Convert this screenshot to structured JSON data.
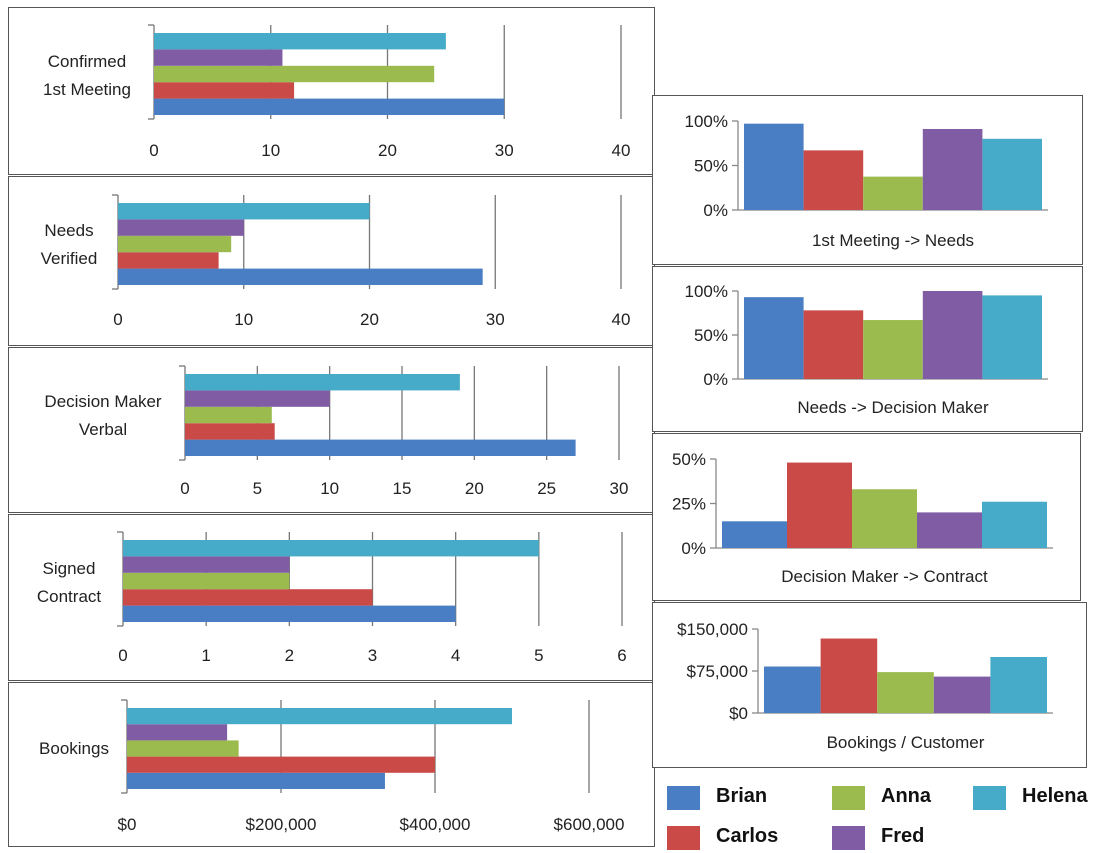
{
  "colors": {
    "Brian": "#4a7ec4",
    "Carlos": "#c94a46",
    "Anna": "#9bbb4f",
    "Fred": "#7f5ca3",
    "Helena": "#46abc8"
  },
  "legend": [
    "Brian",
    "Carlos",
    "Anna",
    "Fred",
    "Helena"
  ],
  "chart_data": [
    {
      "id": "confirmed",
      "type": "bar",
      "orientation": "horizontal",
      "category_label_lines": [
        "Confirmed",
        "1st Meeting"
      ],
      "series": [
        {
          "name": "Brian",
          "value": 30
        },
        {
          "name": "Carlos",
          "value": 12
        },
        {
          "name": "Anna",
          "value": 24
        },
        {
          "name": "Fred",
          "value": 11
        },
        {
          "name": "Helena",
          "value": 25
        }
      ],
      "xlim": [
        0,
        40
      ],
      "ticks": [
        0,
        10,
        20,
        30,
        40
      ],
      "tick_labels": [
        "0",
        "10",
        "20",
        "30",
        "40"
      ],
      "grid": true
    },
    {
      "id": "needs",
      "type": "bar",
      "orientation": "horizontal",
      "category_label_lines": [
        "Needs",
        "Verified"
      ],
      "series": [
        {
          "name": "Brian",
          "value": 29
        },
        {
          "name": "Carlos",
          "value": 8
        },
        {
          "name": "Anna",
          "value": 9
        },
        {
          "name": "Fred",
          "value": 10
        },
        {
          "name": "Helena",
          "value": 20
        }
      ],
      "xlim": [
        0,
        40
      ],
      "ticks": [
        0,
        10,
        20,
        30,
        40
      ],
      "tick_labels": [
        "0",
        "10",
        "20",
        "30",
        "40"
      ],
      "grid": true
    },
    {
      "id": "decision",
      "type": "bar",
      "orientation": "horizontal",
      "category_label_lines": [
        "Decision Maker",
        "Verbal"
      ],
      "series": [
        {
          "name": "Brian",
          "value": 27
        },
        {
          "name": "Carlos",
          "value": 6.2
        },
        {
          "name": "Anna",
          "value": 6
        },
        {
          "name": "Fred",
          "value": 10
        },
        {
          "name": "Helena",
          "value": 19
        }
      ],
      "xlim": [
        0,
        30
      ],
      "ticks": [
        0,
        5,
        10,
        15,
        20,
        25,
        30
      ],
      "tick_labels": [
        "0",
        "5",
        "10",
        "15",
        "20",
        "25",
        "30"
      ],
      "grid": true
    },
    {
      "id": "signed",
      "type": "bar",
      "orientation": "horizontal",
      "category_label_lines": [
        "Signed",
        "Contract"
      ],
      "series": [
        {
          "name": "Brian",
          "value": 4
        },
        {
          "name": "Carlos",
          "value": 3
        },
        {
          "name": "Anna",
          "value": 2
        },
        {
          "name": "Fred",
          "value": 2
        },
        {
          "name": "Helena",
          "value": 5
        }
      ],
      "xlim": [
        0,
        6
      ],
      "ticks": [
        0,
        1,
        2,
        3,
        4,
        5,
        6
      ],
      "tick_labels": [
        "0",
        "1",
        "2",
        "3",
        "4",
        "5",
        "6"
      ],
      "grid": true
    },
    {
      "id": "bookings",
      "type": "bar",
      "orientation": "horizontal",
      "category_label_lines": [
        "Bookings"
      ],
      "series": [
        {
          "name": "Brian",
          "value": 335000
        },
        {
          "name": "Carlos",
          "value": 400000
        },
        {
          "name": "Anna",
          "value": 145000
        },
        {
          "name": "Fred",
          "value": 130000
        },
        {
          "name": "Helena",
          "value": 500000
        }
      ],
      "xlim": [
        0,
        600000
      ],
      "ticks": [
        0,
        200000,
        400000,
        600000
      ],
      "tick_labels": [
        "$0",
        "$200,000",
        "$400,000",
        "$600,000"
      ],
      "grid": true
    },
    {
      "id": "meet_needs",
      "type": "bar",
      "orientation": "vertical",
      "xlabel": "1st Meeting -> Needs",
      "series": [
        {
          "name": "Brian",
          "value": 0.97
        },
        {
          "name": "Carlos",
          "value": 0.67
        },
        {
          "name": "Anna",
          "value": 0.375
        },
        {
          "name": "Fred",
          "value": 0.91
        },
        {
          "name": "Helena",
          "value": 0.8
        }
      ],
      "ylim": [
        0,
        1
      ],
      "ticks": [
        0,
        0.5,
        1
      ],
      "tick_labels": [
        "0%",
        "50%",
        "100%"
      ]
    },
    {
      "id": "needs_decision",
      "type": "bar",
      "orientation": "vertical",
      "xlabel": "Needs -> Decision Maker",
      "series": [
        {
          "name": "Brian",
          "value": 0.93
        },
        {
          "name": "Carlos",
          "value": 0.78
        },
        {
          "name": "Anna",
          "value": 0.67
        },
        {
          "name": "Fred",
          "value": 1.0
        },
        {
          "name": "Helena",
          "value": 0.95
        }
      ],
      "ylim": [
        0,
        1
      ],
      "ticks": [
        0,
        0.5,
        1
      ],
      "tick_labels": [
        "0%",
        "50%",
        "100%"
      ]
    },
    {
      "id": "decision_contract",
      "type": "bar",
      "orientation": "vertical",
      "xlabel": "Decision Maker -> Contract",
      "series": [
        {
          "name": "Brian",
          "value": 0.15
        },
        {
          "name": "Carlos",
          "value": 0.48
        },
        {
          "name": "Anna",
          "value": 0.33
        },
        {
          "name": "Fred",
          "value": 0.2
        },
        {
          "name": "Helena",
          "value": 0.26
        }
      ],
      "ylim": [
        0,
        0.5
      ],
      "ticks": [
        0,
        0.25,
        0.5
      ],
      "tick_labels": [
        "0%",
        "25%",
        "50%"
      ]
    },
    {
      "id": "bookings_customer",
      "type": "bar",
      "orientation": "vertical",
      "xlabel": "Bookings / Customer",
      "series": [
        {
          "name": "Brian",
          "value": 83000
        },
        {
          "name": "Carlos",
          "value": 133000
        },
        {
          "name": "Anna",
          "value": 73000
        },
        {
          "name": "Fred",
          "value": 65000
        },
        {
          "name": "Helena",
          "value": 100000
        }
      ],
      "ylim": [
        0,
        150000
      ],
      "ticks": [
        0,
        75000,
        150000
      ],
      "tick_labels": [
        "$0",
        "$75,000",
        "$150,000"
      ]
    }
  ]
}
